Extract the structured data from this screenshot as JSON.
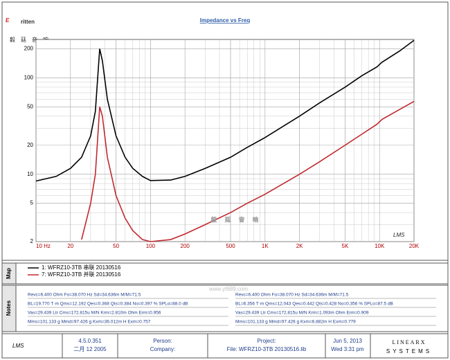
{
  "logo": {
    "brand": "ritten",
    "brand_initial": "E",
    "chinese": "毅廷音响"
  },
  "watermark": {
    "chinese": "毅廷音响",
    "url": "www.yt689.com"
  },
  "chart_data": {
    "type": "line",
    "title": "Impedance vs Freq",
    "plot_logo": "LMS",
    "x": [
      10,
      15,
      20,
      25,
      30,
      33,
      36,
      38,
      42,
      50,
      60,
      70,
      85,
      100,
      150,
      200,
      300,
      500,
      700,
      1000,
      2000,
      3000,
      5000,
      7000,
      9500,
      10500,
      15000,
      20000
    ],
    "series": [
      {
        "name": "1: WFRZ10-3TB 串联 20130516",
        "color": "#000000",
        "values": [
          8.5,
          9.5,
          11.5,
          15,
          25,
          45,
          200,
          150,
          60,
          25,
          15,
          11.5,
          9.5,
          8.6,
          8.7,
          9.5,
          11.5,
          15,
          19,
          24,
          40,
          55,
          80,
          105,
          130,
          145,
          190,
          245
        ]
      },
      {
        "name": "7: WFRZ10-3TB 并联 20130516",
        "color": "#c0282d",
        "values": [
          null,
          null,
          null,
          2.1,
          5,
          10,
          50,
          40,
          15,
          6,
          3.5,
          2.6,
          2.1,
          2.0,
          2.1,
          2.4,
          3,
          4,
          5,
          6.2,
          10,
          13.5,
          20,
          26,
          33,
          37,
          47,
          57
        ]
      }
    ],
    "xlim": [
      10,
      20000
    ],
    "ylim": [
      2,
      250
    ],
    "xlog": true,
    "ylog": true,
    "grid": true,
    "minor_grid": true,
    "xticks": [
      {
        "value": 10,
        "label": "10 Hz"
      },
      20,
      50,
      100,
      200,
      500,
      {
        "value": 1000,
        "label": "1K"
      },
      {
        "value": 2000,
        "label": "2K"
      },
      {
        "value": 5000,
        "label": "5K"
      },
      {
        "value": 10000,
        "label": "10K"
      },
      {
        "value": 20000,
        "label": "20K"
      }
    ],
    "yticks": [
      2,
      5,
      10,
      20,
      50,
      100,
      200
    ]
  },
  "map_panel": {
    "label": "Map"
  },
  "notes_panel": {
    "label": "Notes",
    "left": [
      "Revc=6.400 Ohm  Fo=38.070 Hz  Sd=34.636m  M/M=71.5",
      "BL=19.770 T·m  Qms=12.192  Qes=0.368  Qts=0.384  No=0.397 %  SPLo=88.0 dB",
      "Vas=29.439 Ltr  Cms=172.815u M/N  Krm=2.810m Ohm  Erm=0.956",
      "Mms=101.133 g  Mmd=97.426 g  Kxm=36.012m H  Exm=0.757"
    ],
    "right": [
      "Revc=6.400 Ohm  Fo=38.070 Hz  Sd=34.636m  M/M=71.5",
      "BL=6.356 T·m  Qms=12.043  Qes=0.442  Qts=0.428  No=0.356 %  SPLo=87.5 dB",
      "Vas=29.439 Ltr  Cms=172.815u M/N  Krm=1.093m Ohm  Erm=0.909",
      "Mms=101.133 g  Mmd=97.426 g  Kxm=6.882m H  Exm=0.779"
    ]
  },
  "footer": {
    "logo": "LMS",
    "version": "4.5.0.351",
    "build_date": "二月 12 2005",
    "person": "Person:",
    "company": "Company:",
    "project": "Project:",
    "file": "File: WFRZ10-3TB 20130516.lib",
    "date": "Jun 5, 2013",
    "time": "Wed 3:31 pm",
    "vendor": "LINEARX",
    "vendor_sub": "SYSTEMS"
  }
}
